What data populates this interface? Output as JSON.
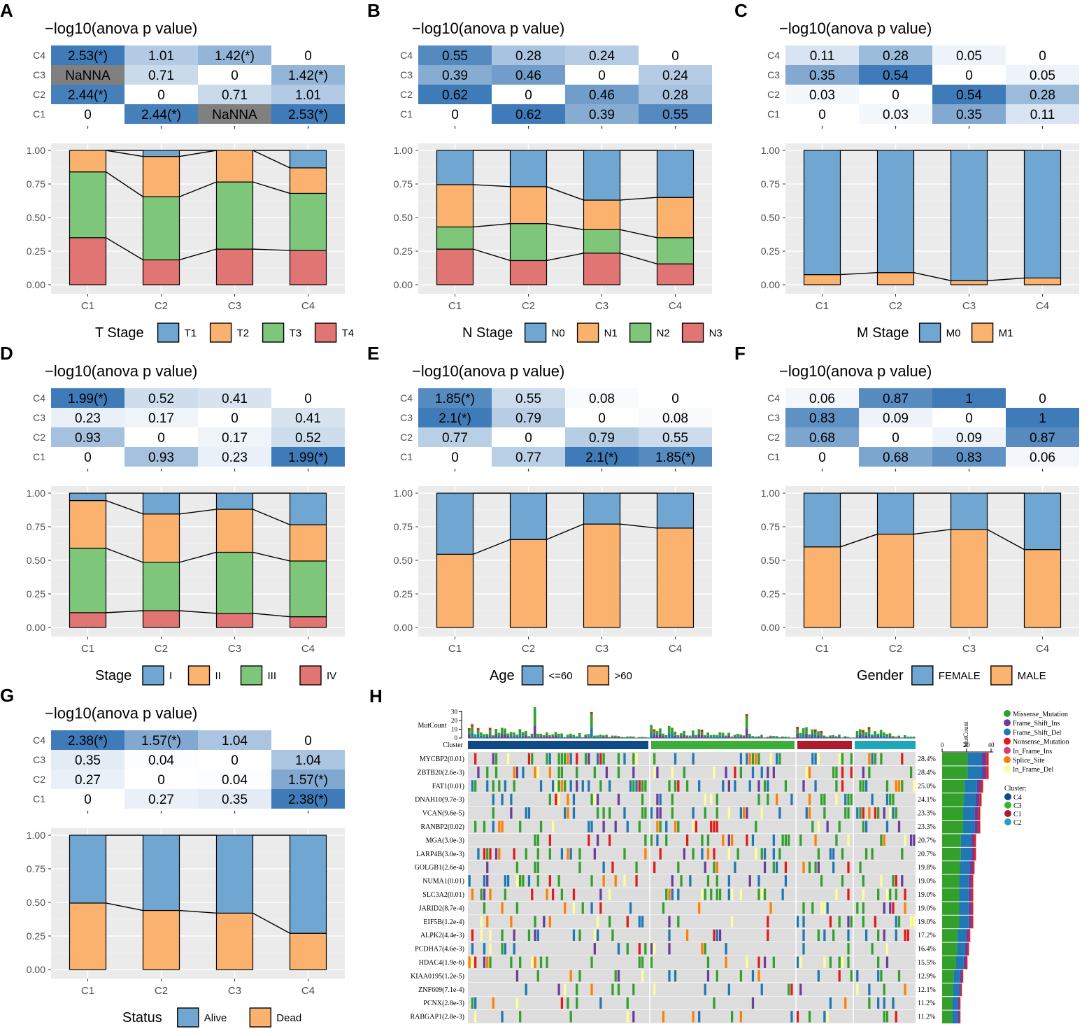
{
  "colors": {
    "heat_low": "#ffffff",
    "heat_high": "#3f7bb8",
    "na_fill": "#808080",
    "panel_bg": "#ebebeb",
    "onco_bg": "#dddddd",
    "s1": "#6fa6d2",
    "s2": "#fbb26e",
    "s3": "#7ec77a",
    "s4": "#e07574",
    "missense": "#33a02c",
    "frame_ins": "#6a3d9a",
    "frame_del": "#1f78b4",
    "nonsense": "#e31a1c",
    "inframe_ins": "#d6406e",
    "splice": "#ff7f00",
    "inframe_del": "#ffff99",
    "c4": "#0e4a8a",
    "c3": "#3ab03a",
    "c1": "#b01a2e",
    "c2": "#1ea7b8"
  },
  "chart_data": [
    {
      "panel": "A",
      "type": "bar",
      "title": "−log10(anova p value)",
      "categories": [
        "C1",
        "C2",
        "C3",
        "C4"
      ],
      "heatmap_rows": [
        "C4",
        "C3",
        "C2",
        "C1"
      ],
      "heatmap_cells": [
        [
          "2.53(*)",
          "1.01",
          "1.42(*)",
          "0"
        ],
        [
          "NaNNA",
          "0.71",
          "0",
          "1.42(*)"
        ],
        [
          "2.44(*)",
          "0",
          "0.71",
          "1.01"
        ],
        [
          "0",
          "2.44(*)",
          "NaNNA",
          "2.53(*)"
        ]
      ],
      "heatmap_values": [
        [
          2.53,
          1.01,
          1.42,
          0
        ],
        [
          null,
          0.71,
          0,
          1.42
        ],
        [
          2.44,
          0,
          0.71,
          1.01
        ],
        [
          0,
          2.44,
          null,
          2.53
        ]
      ],
      "heatmap_max": 2.53,
      "yticks": [
        "0.00",
        "0.25",
        "0.50",
        "0.75",
        "1.00"
      ],
      "ylim": [
        0,
        1
      ],
      "legend_title": "T Stage",
      "series": [
        {
          "name": "T4",
          "values": [
            0.35,
            0.185,
            0.265,
            0.255
          ]
        },
        {
          "name": "T3",
          "values": [
            0.49,
            0.47,
            0.5,
            0.425
          ]
        },
        {
          "name": "T2",
          "values": [
            0.16,
            0.3,
            0.235,
            0.19
          ]
        },
        {
          "name": "T1",
          "values": [
            0,
            0.045,
            0,
            0.13
          ]
        }
      ],
      "legend": [
        "T1",
        "T2",
        "T3",
        "T4"
      ]
    },
    {
      "panel": "B",
      "type": "bar",
      "title": "−log10(anova p value)",
      "categories": [
        "C1",
        "C2",
        "C3",
        "C4"
      ],
      "heatmap_rows": [
        "C4",
        "C3",
        "C2",
        "C1"
      ],
      "heatmap_cells": [
        [
          "0.55",
          "0.28",
          "0.24",
          "0"
        ],
        [
          "0.39",
          "0.46",
          "0",
          "0.24"
        ],
        [
          "0.62",
          "0",
          "0.46",
          "0.28"
        ],
        [
          "0",
          "0.62",
          "0.39",
          "0.55"
        ]
      ],
      "heatmap_values": [
        [
          0.55,
          0.28,
          0.24,
          0
        ],
        [
          0.39,
          0.46,
          0,
          0.24
        ],
        [
          0.62,
          0,
          0.46,
          0.28
        ],
        [
          0,
          0.62,
          0.39,
          0.55
        ]
      ],
      "heatmap_max": 0.62,
      "yticks": [
        "0.00",
        "0.25",
        "0.50",
        "0.75",
        "1.00"
      ],
      "ylim": [
        0,
        1
      ],
      "legend_title": "N Stage",
      "series": [
        {
          "name": "N3",
          "values": [
            0.265,
            0.18,
            0.235,
            0.155
          ]
        },
        {
          "name": "N2",
          "values": [
            0.165,
            0.275,
            0.175,
            0.195
          ]
        },
        {
          "name": "N1",
          "values": [
            0.315,
            0.275,
            0.22,
            0.3
          ]
        },
        {
          "name": "N0",
          "values": [
            0.255,
            0.27,
            0.37,
            0.35
          ]
        }
      ],
      "legend": [
        "N0",
        "N1",
        "N2",
        "N3"
      ]
    },
    {
      "panel": "C",
      "type": "bar",
      "title": "−log10(anova p value)",
      "categories": [
        "C1",
        "C2",
        "C3",
        "C4"
      ],
      "heatmap_rows": [
        "C4",
        "C3",
        "C2",
        "C1"
      ],
      "heatmap_cells": [
        [
          "0.11",
          "0.28",
          "0.05",
          "0"
        ],
        [
          "0.35",
          "0.54",
          "0",
          "0.05"
        ],
        [
          "0.03",
          "0",
          "0.54",
          "0.28"
        ],
        [
          "0",
          "0.03",
          "0.35",
          "0.11"
        ]
      ],
      "heatmap_values": [
        [
          0.11,
          0.28,
          0.05,
          0
        ],
        [
          0.35,
          0.54,
          0,
          0.05
        ],
        [
          0.03,
          0,
          0.54,
          0.28
        ],
        [
          0,
          0.03,
          0.35,
          0.11
        ]
      ],
      "heatmap_max": 0.54,
      "yticks": [
        "0.00",
        "0.25",
        "0.50",
        "0.75",
        "1.00"
      ],
      "ylim": [
        0,
        1
      ],
      "legend_title": "M Stage",
      "series": [
        {
          "name": "M1",
          "values": [
            0.075,
            0.09,
            0.03,
            0.05
          ]
        },
        {
          "name": "M0",
          "values": [
            0.925,
            0.91,
            0.97,
            0.95
          ]
        }
      ],
      "legend": [
        "M0",
        "M1"
      ]
    },
    {
      "panel": "D",
      "type": "bar",
      "title": "−log10(anova p value)",
      "categories": [
        "C1",
        "C2",
        "C3",
        "C4"
      ],
      "heatmap_rows": [
        "C4",
        "C3",
        "C2",
        "C1"
      ],
      "heatmap_cells": [
        [
          "1.99(*)",
          "0.52",
          "0.41",
          "0"
        ],
        [
          "0.23",
          "0.17",
          "0",
          "0.41"
        ],
        [
          "0.93",
          "0",
          "0.17",
          "0.52"
        ],
        [
          "0",
          "0.93",
          "0.23",
          "1.99(*)"
        ]
      ],
      "heatmap_values": [
        [
          1.99,
          0.52,
          0.41,
          0
        ],
        [
          0.23,
          0.17,
          0,
          0.41
        ],
        [
          0.93,
          0,
          0.17,
          0.52
        ],
        [
          0,
          0.93,
          0.23,
          1.99
        ]
      ],
      "heatmap_max": 1.99,
      "yticks": [
        "0.00",
        "0.25",
        "0.50",
        "0.75",
        "1.00"
      ],
      "ylim": [
        0,
        1
      ],
      "legend_title": "Stage",
      "series": [
        {
          "name": "IV",
          "values": [
            0.11,
            0.125,
            0.105,
            0.08
          ]
        },
        {
          "name": "III",
          "values": [
            0.48,
            0.36,
            0.455,
            0.415
          ]
        },
        {
          "name": "II",
          "values": [
            0.355,
            0.36,
            0.32,
            0.27
          ]
        },
        {
          "name": "I",
          "values": [
            0.055,
            0.155,
            0.12,
            0.235
          ]
        }
      ],
      "legend": [
        "I",
        "II",
        "III",
        "IV"
      ]
    },
    {
      "panel": "E",
      "type": "bar",
      "title": "−log10(anova p value)",
      "categories": [
        "C1",
        "C2",
        "C3",
        "C4"
      ],
      "heatmap_rows": [
        "C4",
        "C3",
        "C2",
        "C1"
      ],
      "heatmap_cells": [
        [
          "1.85(*)",
          "0.55",
          "0.08",
          "0"
        ],
        [
          "2.1(*)",
          "0.79",
          "0",
          "0.08"
        ],
        [
          "0.77",
          "0",
          "0.79",
          "0.55"
        ],
        [
          "0",
          "0.77",
          "2.1(*)",
          "1.85(*)"
        ]
      ],
      "heatmap_values": [
        [
          1.85,
          0.55,
          0.08,
          0
        ],
        [
          2.1,
          0.79,
          0,
          0.08
        ],
        [
          0.77,
          0,
          0.79,
          0.55
        ],
        [
          0,
          0.77,
          2.1,
          1.85
        ]
      ],
      "heatmap_max": 2.1,
      "yticks": [
        "0.00",
        "0.25",
        "0.50",
        "0.75",
        "1.00"
      ],
      "ylim": [
        0,
        1
      ],
      "legend_title": "Age",
      "series": [
        {
          "name": ">60",
          "values": [
            0.545,
            0.655,
            0.77,
            0.74
          ]
        },
        {
          "name": "<=60",
          "values": [
            0.455,
            0.345,
            0.23,
            0.26
          ]
        }
      ],
      "legend": [
        "<=60",
        ">60"
      ]
    },
    {
      "panel": "F",
      "type": "bar",
      "title": "−log10(anova p value)",
      "categories": [
        "C1",
        "C2",
        "C3",
        "C4"
      ],
      "heatmap_rows": [
        "C4",
        "C3",
        "C2",
        "C1"
      ],
      "heatmap_cells": [
        [
          "0.06",
          "0.87",
          "1",
          "0"
        ],
        [
          "0.83",
          "0.09",
          "0",
          "1"
        ],
        [
          "0.68",
          "0",
          "0.09",
          "0.87"
        ],
        [
          "0",
          "0.68",
          "0.83",
          "0.06"
        ]
      ],
      "heatmap_values": [
        [
          0.06,
          0.87,
          1,
          0
        ],
        [
          0.83,
          0.09,
          0,
          1
        ],
        [
          0.68,
          0,
          0.09,
          0.87
        ],
        [
          0,
          0.68,
          0.83,
          0.06
        ]
      ],
      "heatmap_max": 1,
      "yticks": [
        "0.00",
        "0.25",
        "0.50",
        "0.75",
        "1.00"
      ],
      "ylim": [
        0,
        1
      ],
      "legend_title": "Gender",
      "series": [
        {
          "name": "MALE",
          "values": [
            0.6,
            0.695,
            0.73,
            0.58
          ]
        },
        {
          "name": "FEMALE",
          "values": [
            0.4,
            0.305,
            0.27,
            0.42
          ]
        }
      ],
      "legend": [
        "FEMALE",
        "MALE"
      ]
    },
    {
      "panel": "G",
      "type": "bar",
      "title": "−log10(anova p value)",
      "categories": [
        "C1",
        "C2",
        "C3",
        "C4"
      ],
      "heatmap_rows": [
        "C4",
        "C3",
        "C2",
        "C1"
      ],
      "heatmap_cells": [
        [
          "2.38(*)",
          "1.57(*)",
          "1.04",
          "0"
        ],
        [
          "0.35",
          "0.04",
          "0",
          "1.04"
        ],
        [
          "0.27",
          "0",
          "0.04",
          "1.57(*)"
        ],
        [
          "0",
          "0.27",
          "0.35",
          "2.38(*)"
        ]
      ],
      "heatmap_values": [
        [
          2.38,
          1.57,
          1.04,
          0
        ],
        [
          0.35,
          0.04,
          0,
          1.04
        ],
        [
          0.27,
          0,
          0.04,
          1.57
        ],
        [
          0,
          0.27,
          0.35,
          2.38
        ]
      ],
      "heatmap_max": 2.38,
      "yticks": [
        "0.00",
        "0.25",
        "0.50",
        "0.75",
        "1.00"
      ],
      "ylim": [
        0,
        1
      ],
      "legend_title": "Status",
      "series": [
        {
          "name": "Dead",
          "values": [
            0.495,
            0.44,
            0.42,
            0.27
          ]
        },
        {
          "name": "Alive",
          "values": [
            0.505,
            0.56,
            0.58,
            0.73
          ]
        }
      ],
      "legend": [
        "Alive",
        "Dead"
      ]
    }
  ],
  "oncoplot": {
    "panel": "H",
    "mutcount_label": "MutCount",
    "mutcount_ticks": [
      "0",
      "10",
      "20",
      "30"
    ],
    "cluster_label": "Cluster",
    "side_axis_label": "MutCount",
    "side_axis_ticks": [
      "0",
      "20",
      "40"
    ],
    "legend_items": [
      {
        "name": "Missense_Mutation",
        "color_key": "missense"
      },
      {
        "name": "Frame_Shift_Ins",
        "color_key": "frame_ins"
      },
      {
        "name": "Frame_Shift_Del",
        "color_key": "frame_del"
      },
      {
        "name": "Nonsense_Mutation",
        "color_key": "nonsense"
      },
      {
        "name": "In_Frame_Ins",
        "color_key": "inframe_ins"
      },
      {
        "name": "Splice_Site",
        "color_key": "splice"
      },
      {
        "name": "In_Frame_Del",
        "color_key": "inframe_del"
      }
    ],
    "cluster_legend_title": "Cluster:",
    "cluster_legend": [
      {
        "name": "C4",
        "color_key": "c4"
      },
      {
        "name": "C3",
        "color_key": "c3"
      },
      {
        "name": "C1",
        "color_key": "c1"
      },
      {
        "name": "C2",
        "color_key": "c2"
      }
    ],
    "clusters_order": [
      "C4",
      "C3",
      "C1",
      "C2"
    ],
    "genes": [
      {
        "name": "MYCBP2(0.01)",
        "pct": "28.4%",
        "value": 28.4
      },
      {
        "name": "ZBTB20(2.6e-3)",
        "pct": "28.4%",
        "value": 28.4
      },
      {
        "name": "FAT1(0.01)",
        "pct": "25.0%",
        "value": 25.0
      },
      {
        "name": "DNAH10(9.7e-3)",
        "pct": "24.1%",
        "value": 24.1
      },
      {
        "name": "VCAN(9.6e-5)",
        "pct": "23.3%",
        "value": 23.3
      },
      {
        "name": "RANBP2(0.02)",
        "pct": "23.3%",
        "value": 23.3
      },
      {
        "name": "MGA(3.0e-3)",
        "pct": "20.7%",
        "value": 20.7
      },
      {
        "name": "LARP4B(3.0e-3)",
        "pct": "20.7%",
        "value": 20.7
      },
      {
        "name": "GOLGB1(2.6e-4)",
        "pct": "19.8%",
        "value": 19.8
      },
      {
        "name": "NUMA1(0.01)",
        "pct": "19.0%",
        "value": 19.0
      },
      {
        "name": "SLC3A2(0.01)",
        "pct": "19.0%",
        "value": 19.0
      },
      {
        "name": "JARID2(8.7e-4)",
        "pct": "19.0%",
        "value": 19.0
      },
      {
        "name": "EIF5B(1.2e-4)",
        "pct": "19.0%",
        "value": 19.0
      },
      {
        "name": "ALPK2(4.4e-3)",
        "pct": "17.2%",
        "value": 17.2
      },
      {
        "name": "PCDHA7(4.6e-3)",
        "pct": "16.4%",
        "value": 16.4
      },
      {
        "name": "HDAC4(1.9e-6)",
        "pct": "15.5%",
        "value": 15.5
      },
      {
        "name": "KIAA0195(1.2e-5)",
        "pct": "12.9%",
        "value": 12.9
      },
      {
        "name": "ZNF609(7.1e-4)",
        "pct": "12.1%",
        "value": 12.1
      },
      {
        "name": "PCNX(2.8e-3)",
        "pct": "11.2%",
        "value": 11.2
      },
      {
        "name": "RABGAP1(2.8e-3)",
        "pct": "11.2%",
        "value": 11.2
      }
    ]
  }
}
